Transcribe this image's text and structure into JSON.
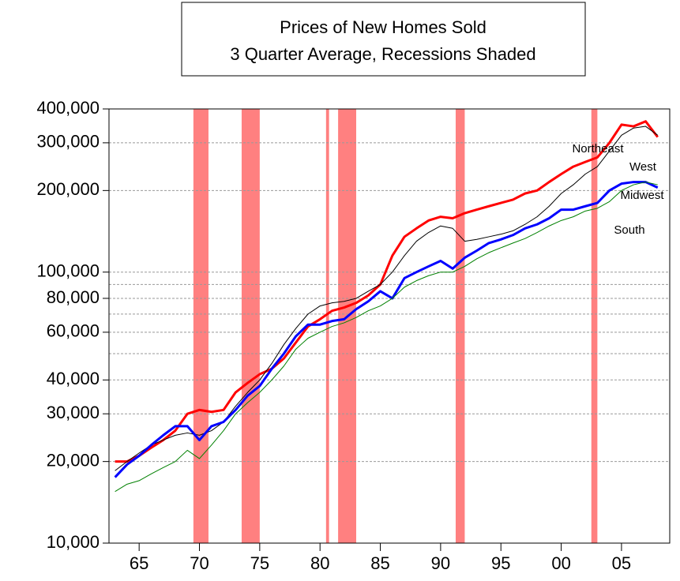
{
  "chart_data": {
    "type": "line",
    "title": "Prices of New Homes Sold",
    "subtitle": "3 Quarter Average, Recessions Shaded",
    "log_y": true,
    "grid": true,
    "xlim": [
      1962.5,
      2009.0
    ],
    "ylim": [
      10000,
      400000
    ],
    "xticks": [
      {
        "value": 1965,
        "label": "65"
      },
      {
        "value": 1970,
        "label": "70"
      },
      {
        "value": 1975,
        "label": "75"
      },
      {
        "value": 1980,
        "label": "80"
      },
      {
        "value": 1985,
        "label": "85"
      },
      {
        "value": 1990,
        "label": "90"
      },
      {
        "value": 1995,
        "label": "95"
      },
      {
        "value": 2000,
        "label": "00"
      },
      {
        "value": 2005,
        "label": "05"
      }
    ],
    "yticks": [
      {
        "value": 10000,
        "label": "10,000"
      },
      {
        "value": 20000,
        "label": "20,000"
      },
      {
        "value": 30000,
        "label": "30,000"
      },
      {
        "value": 40000,
        "label": "40,000"
      },
      {
        "value": 60000,
        "label": "60,000"
      },
      {
        "value": 80000,
        "label": "80,000"
      },
      {
        "value": 100000,
        "label": "100,000"
      },
      {
        "value": 200000,
        "label": "200,000"
      },
      {
        "value": 300000,
        "label": "300,000"
      },
      {
        "value": 400000,
        "label": "400,000"
      }
    ],
    "minor_grid": [
      50000,
      70000,
      90000
    ],
    "recessions": [
      [
        1969.5,
        1970.75
      ],
      [
        1973.5,
        1975.0
      ],
      [
        1980.5,
        1980.75
      ],
      [
        1981.5,
        1983.0
      ],
      [
        1991.25,
        1992.0
      ],
      [
        2002.5,
        2003.0
      ]
    ],
    "recession_color": "#ff8080",
    "x": [
      1963,
      1964,
      1965,
      1966,
      1967,
      1968,
      1969,
      1970,
      1971,
      1972,
      1973,
      1974,
      1975,
      1976,
      1977,
      1978,
      1979,
      1980,
      1981,
      1982,
      1983,
      1984,
      1985,
      1986,
      1987,
      1988,
      1989,
      1990,
      1991,
      1992,
      1993,
      1994,
      1995,
      1996,
      1997,
      1998,
      1999,
      2000,
      2001,
      2002,
      2003,
      2004,
      2005,
      2006,
      2007,
      2008
    ],
    "series": [
      {
        "name": "Northeast",
        "color": "#ff0000",
        "width": 3,
        "values": [
          20000,
          20000,
          21000,
          22500,
          24000,
          26000,
          30000,
          31000,
          30500,
          31000,
          36000,
          39000,
          42000,
          44000,
          48000,
          55000,
          63000,
          67000,
          72000,
          74000,
          77000,
          82000,
          90000,
          115000,
          135000,
          145000,
          155000,
          160000,
          158000,
          165000,
          170000,
          175000,
          180000,
          185000,
          195000,
          200000,
          215000,
          230000,
          245000,
          255000,
          265000,
          300000,
          350000,
          345000,
          360000,
          315000
        ]
      },
      {
        "name": "West",
        "color": "#000000",
        "width": 1,
        "values": [
          18500,
          20000,
          21500,
          23000,
          24000,
          25000,
          25500,
          25000,
          26000,
          28000,
          32000,
          36000,
          40000,
          46000,
          54000,
          62000,
          70000,
          75000,
          77000,
          78000,
          80000,
          85000,
          90000,
          100000,
          115000,
          130000,
          140000,
          148000,
          145000,
          130000,
          132000,
          135000,
          138000,
          142000,
          150000,
          160000,
          175000,
          195000,
          210000,
          230000,
          245000,
          280000,
          320000,
          340000,
          345000,
          320000
        ]
      },
      {
        "name": "Midwest",
        "color": "#0000ff",
        "width": 3,
        "values": [
          17500,
          19500,
          21000,
          23000,
          25000,
          27000,
          27000,
          24000,
          27000,
          28000,
          31000,
          35000,
          38000,
          44000,
          50000,
          58000,
          64000,
          64000,
          66000,
          67000,
          73000,
          78000,
          85000,
          80000,
          95000,
          100000,
          105000,
          110000,
          103000,
          113000,
          120000,
          128000,
          132000,
          137000,
          145000,
          150000,
          158000,
          170000,
          170000,
          175000,
          180000,
          200000,
          212000,
          215000,
          215000,
          205000
        ]
      },
      {
        "name": "South",
        "color": "#008000",
        "width": 1,
        "values": [
          15500,
          16500,
          17000,
          18000,
          19000,
          20000,
          22000,
          20500,
          23000,
          26000,
          30000,
          33000,
          36000,
          40000,
          45000,
          52000,
          57000,
          60000,
          63000,
          65000,
          68000,
          72000,
          75000,
          80000,
          88000,
          93000,
          97000,
          100000,
          100000,
          105000,
          112000,
          118000,
          123000,
          128000,
          133000,
          140000,
          148000,
          155000,
          160000,
          168000,
          172000,
          182000,
          200000,
          210000,
          215000,
          210000
        ]
      }
    ]
  }
}
